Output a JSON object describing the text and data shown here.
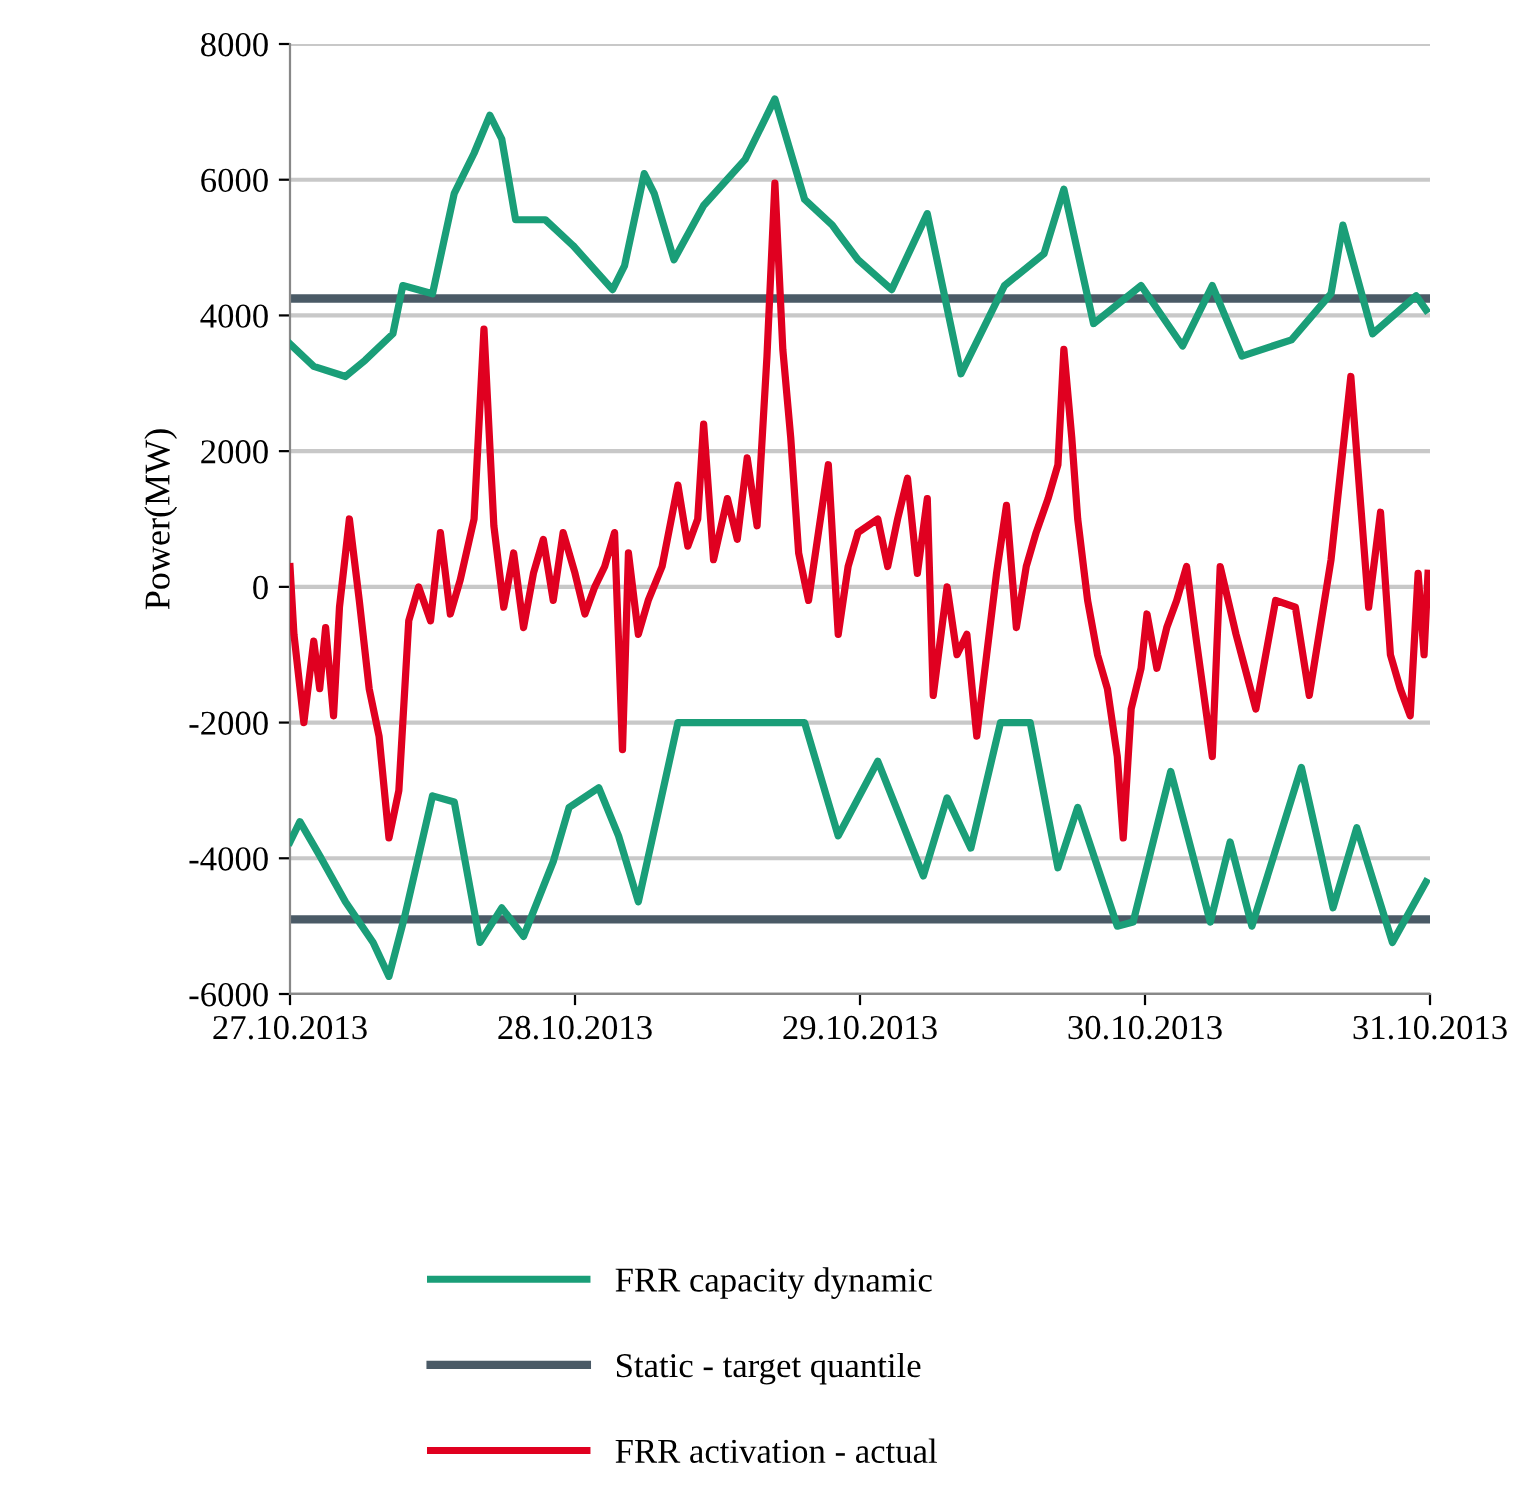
{
  "chart_data": {
    "type": "line",
    "ylabel": "Power(MW)",
    "xlim": [
      "2013-10-27T00:00",
      "2013-10-31T00:00"
    ],
    "xticks": [
      {
        "value": "2013-10-27",
        "label": "27.10.2013"
      },
      {
        "value": "2013-10-28",
        "label": "28.10.2013"
      },
      {
        "value": "2013-10-29",
        "label": "29.10.2013"
      },
      {
        "value": "2013-10-30",
        "label": "30.10.2013"
      },
      {
        "value": "2013-10-31",
        "label": "31.10.2013"
      }
    ],
    "ylim": [
      -6000,
      8000
    ],
    "yticks": [
      -6000,
      -4000,
      -2000,
      0,
      2000,
      4000,
      6000,
      8000
    ],
    "grid": "y",
    "legend": "bottom",
    "marker": "none",
    "line_style": "solid",
    "series": [
      {
        "name": "FRR capacity dynamic",
        "color": "#1a9e78",
        "x": [
          "2013-10-27T00:00",
          "2013-10-27T02:00",
          "2013-10-27T04:40",
          "2013-10-27T06:20",
          "2013-10-27T08:40",
          "2013-10-27T09:30",
          "2013-10-27T12:00",
          "2013-10-27T13:50",
          "2013-10-27T15:30",
          "2013-10-27T16:50",
          "2013-10-27T17:50",
          "2013-10-27T19:00",
          "2013-10-27T21:30",
          "2013-10-27T23:50",
          "2013-10-28T03:10",
          "2013-10-28T04:10",
          "2013-10-28T05:50",
          "2013-10-28T06:40",
          "2013-10-28T08:20",
          "2013-10-28T10:50",
          "2013-10-28T14:20",
          "2013-10-28T16:50",
          "2013-10-28T19:20",
          "2013-10-28T21:40",
          "2013-10-28T22:10",
          "2013-10-28T23:50",
          "2013-10-29T02:40",
          "2013-10-29T05:40",
          "2013-10-29T08:30",
          "2013-10-29T12:10",
          "2013-10-29T15:30",
          "2013-10-29T17:10",
          "2013-10-29T19:40",
          "2013-10-29T23:40",
          "2013-10-30T03:10",
          "2013-10-30T05:40",
          "2013-10-30T08:10",
          "2013-10-30T12:20",
          "2013-10-30T15:40",
          "2013-10-30T16:40",
          "2013-10-30T19:10",
          "2013-10-30T22:50",
          "2013-10-30T23:40"
        ],
        "values": [
          3580,
          3250,
          3100,
          3340,
          3730,
          4440,
          4320,
          5800,
          6390,
          6950,
          6600,
          5410,
          5410,
          5030,
          4380,
          4730,
          6090,
          5800,
          4820,
          5620,
          6300,
          7190,
          5710,
          5330,
          5210,
          4820,
          4380,
          5500,
          3140,
          4440,
          4910,
          5860,
          3880,
          4440,
          3550,
          4440,
          3400,
          3640,
          4320,
          5330,
          3730,
          4290,
          4080
        ]
      },
      {
        "color": "#1a9e78",
        "x": [
          "2013-10-27T00:00",
          "2013-10-27T00:50",
          "2013-10-27T02:30",
          "2013-10-27T04:40",
          "2013-10-27T07:00",
          "2013-10-27T08:20",
          "2013-10-27T09:40",
          "2013-10-27T12:00",
          "2013-10-27T13:50",
          "2013-10-27T16:00",
          "2013-10-27T17:50",
          "2013-10-27T19:40",
          "2013-10-27T22:10",
          "2013-10-27T23:30",
          "2013-10-28T02:00",
          "2013-10-28T03:40",
          "2013-10-28T05:20",
          "2013-10-28T08:40",
          "2013-10-28T19:20",
          "2013-10-28T22:10",
          "2013-10-29T01:30",
          "2013-10-29T05:20",
          "2013-10-29T07:20",
          "2013-10-29T09:20",
          "2013-10-29T11:50",
          "2013-10-29T14:20",
          "2013-10-29T16:40",
          "2013-10-29T18:20",
          "2013-10-29T21:40",
          "2013-10-29T23:00",
          "2013-10-30T02:10",
          "2013-10-30T05:30",
          "2013-10-30T07:10",
          "2013-10-30T09:00",
          "2013-10-30T13:10",
          "2013-10-30T15:50",
          "2013-10-30T17:50",
          "2013-10-30T20:50",
          "2013-10-30T23:40"
        ],
        "values": [
          -3760,
          -3460,
          -3960,
          -4640,
          -5240,
          -5740,
          -4850,
          -3080,
          -3170,
          -5240,
          -4730,
          -5150,
          -4050,
          -3250,
          -2960,
          -3670,
          -4640,
          -2000,
          -2000,
          -3670,
          -2570,
          -4260,
          -3110,
          -3850,
          -2000,
          -2000,
          -4140,
          -3250,
          -5000,
          -4940,
          -2720,
          -4940,
          -3760,
          -5000,
          -2660,
          -4730,
          -3550,
          -5240,
          -4350
        ]
      },
      {
        "name": "FRR activation - actual",
        "color": "#e00020",
        "x": [
          "2013-10-27T00:00",
          "2013-10-27T00:20",
          "2013-10-27T01:10",
          "2013-10-27T02:00",
          "2013-10-27T02:30",
          "2013-10-27T03:00",
          "2013-10-27T03:40",
          "2013-10-27T04:10",
          "2013-10-27T05:00",
          "2013-10-27T05:50",
          "2013-10-27T06:40",
          "2013-10-27T07:30",
          "2013-10-27T08:20",
          "2013-10-27T09:10",
          "2013-10-27T10:00",
          "2013-10-27T10:50",
          "2013-10-27T11:50",
          "2013-10-27T12:40",
          "2013-10-27T13:30",
          "2013-10-27T14:20",
          "2013-10-27T15:30",
          "2013-10-27T16:20",
          "2013-10-27T17:10",
          "2013-10-27T18:00",
          "2013-10-27T18:50",
          "2013-10-27T19:40",
          "2013-10-27T20:30",
          "2013-10-27T21:20",
          "2013-10-27T22:10",
          "2013-10-27T23:00",
          "2013-10-28T00:00",
          "2013-10-28T00:50",
          "2013-10-28T01:40",
          "2013-10-28T02:30",
          "2013-10-28T03:20",
          "2013-10-28T04:00",
          "2013-10-28T04:30",
          "2013-10-28T05:20",
          "2013-10-28T06:10",
          "2013-10-28T07:20",
          "2013-10-28T08:40",
          "2013-10-28T09:30",
          "2013-10-28T10:20",
          "2013-10-28T10:50",
          "2013-10-28T11:40",
          "2013-10-28T12:50",
          "2013-10-28T13:40",
          "2013-10-28T14:30",
          "2013-10-28T15:20",
          "2013-10-28T16:10",
          "2013-10-28T16:50",
          "2013-10-28T17:30",
          "2013-10-28T18:10",
          "2013-10-28T18:50",
          "2013-10-28T19:40",
          "2013-10-28T20:30",
          "2013-10-28T21:20",
          "2013-10-28T22:10",
          "2013-10-28T23:00",
          "2013-10-28T23:50",
          "2013-10-29T01:30",
          "2013-10-29T02:20",
          "2013-10-29T03:10",
          "2013-10-29T04:00",
          "2013-10-29T04:50",
          "2013-10-29T05:40",
          "2013-10-29T06:10",
          "2013-10-29T07:20",
          "2013-10-29T08:10",
          "2013-10-29T09:00",
          "2013-10-29T09:50",
          "2013-10-29T10:40",
          "2013-10-29T11:30",
          "2013-10-29T12:20",
          "2013-10-29T13:10",
          "2013-10-29T14:00",
          "2013-10-29T14:50",
          "2013-10-29T15:50",
          "2013-10-29T16:40",
          "2013-10-29T17:10",
          "2013-10-29T17:50",
          "2013-10-29T18:20",
          "2013-10-29T19:10",
          "2013-10-29T20:00",
          "2013-10-29T20:50",
          "2013-10-29T21:40",
          "2013-10-29T22:10",
          "2013-10-29T22:50",
          "2013-10-29T23:40",
          "2013-10-30T00:10",
          "2013-10-30T01:00",
          "2013-10-30T01:50",
          "2013-10-30T02:40",
          "2013-10-30T03:30",
          "2013-10-30T04:20",
          "2013-10-30T05:40",
          "2013-10-30T06:20",
          "2013-10-30T07:40",
          "2013-10-30T09:20",
          "2013-10-30T11:00",
          "2013-10-30T12:40",
          "2013-10-30T13:50",
          "2013-10-30T15:40",
          "2013-10-30T17:20",
          "2013-10-30T18:10",
          "2013-10-30T18:50",
          "2013-10-30T19:50",
          "2013-10-30T20:40",
          "2013-10-30T21:30",
          "2013-10-30T22:20",
          "2013-10-30T23:00",
          "2013-10-30T23:30",
          "2013-10-30T23:50"
        ],
        "values": [
          300,
          -700,
          -2000,
          -800,
          -1500,
          -600,
          -1900,
          -300,
          1000,
          -200,
          -1500,
          -2200,
          -3700,
          -3000,
          -500,
          0,
          -500,
          800,
          -400,
          100,
          1000,
          3800,
          900,
          -300,
          500,
          -600,
          200,
          700,
          -200,
          800,
          200,
          -400,
          0,
          300,
          800,
          -2400,
          500,
          -700,
          -200,
          300,
          1500,
          600,
          1000,
          2400,
          400,
          1300,
          700,
          1900,
          900,
          3400,
          5950,
          3500,
          2200,
          500,
          -200,
          800,
          1800,
          -700,
          300,
          800,
          1000,
          300,
          1000,
          1600,
          200,
          1300,
          -1600,
          0,
          -1000,
          -700,
          -2200,
          -1000,
          200,
          1200,
          -600,
          300,
          800,
          1300,
          1800,
          3500,
          2200,
          1000,
          -200,
          -1000,
          -1500,
          -2500,
          -3700,
          -1800,
          -1200,
          -400,
          -1200,
          -600,
          -200,
          300,
          -800,
          -2500,
          300,
          -700,
          -1800,
          -200,
          -300,
          -1600,
          400,
          3100,
          1200,
          -300,
          1100,
          -1000,
          -1500,
          -1900,
          200,
          -1000,
          200
        ]
      }
    ],
    "ref_lines": [
      {
        "axis": "y",
        "value": 4250,
        "label": "Static - target quantile",
        "color": "#4a5a66"
      },
      {
        "axis": "y",
        "value": -4900,
        "color": "#4a5a66"
      }
    ]
  }
}
